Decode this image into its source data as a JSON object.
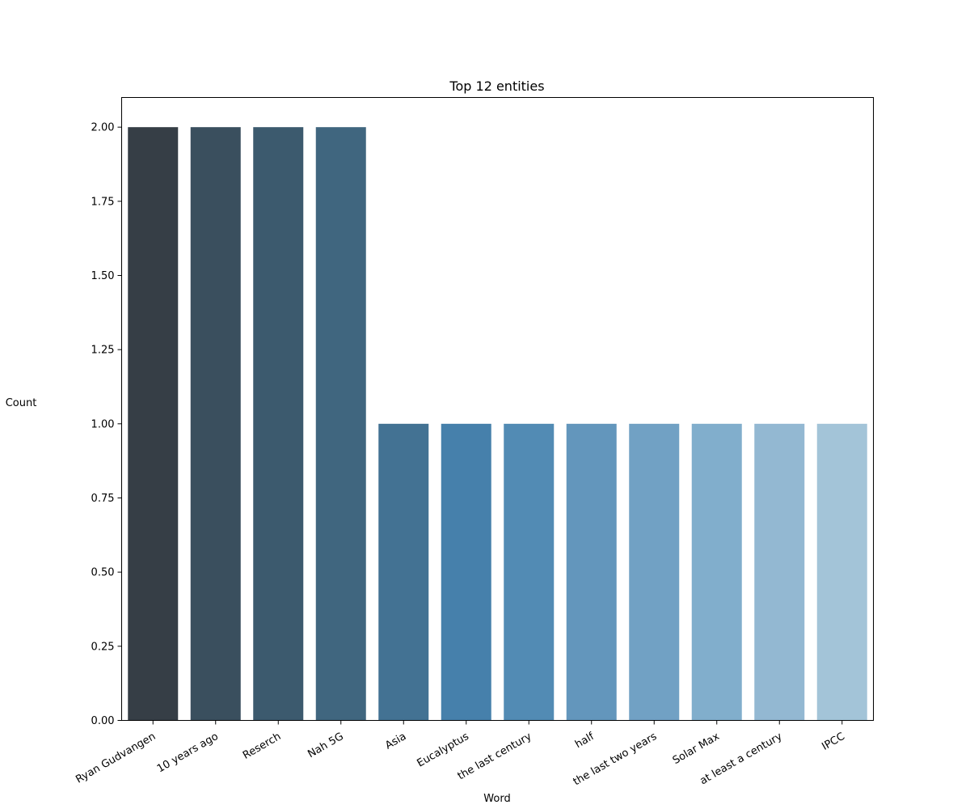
{
  "chart_data": {
    "type": "bar",
    "title": "Top 12 entities",
    "xlabel": "Word",
    "ylabel": "Count",
    "categories": [
      "Ryan Gudvangen",
      "10 years ago",
      "Reserch",
      "Nah 5G",
      "Asia",
      "Eucalyptus",
      "the last century",
      "half",
      "the last two years",
      "Solar Max",
      "at least a century",
      "IPCC"
    ],
    "values": [
      2,
      2,
      2,
      2,
      1,
      1,
      1,
      1,
      1,
      1,
      1,
      1
    ],
    "colors": [
      "#363e46",
      "#3a4f5e",
      "#3c5a6e",
      "#40667f",
      "#437293",
      "#4680ab",
      "#528bb4",
      "#6396bc",
      "#71a1c4",
      "#81aecc",
      "#93b8d2",
      "#a3c4d8"
    ],
    "ylim": [
      0,
      2.1
    ],
    "yticks": [
      "0.00",
      "0.25",
      "0.50",
      "0.75",
      "1.00",
      "1.25",
      "1.50",
      "1.75",
      "2.00"
    ],
    "grid": false,
    "legend": false
  }
}
